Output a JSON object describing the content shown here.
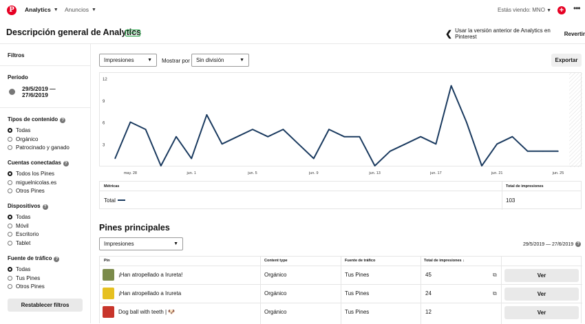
{
  "nav": {
    "logo": "P",
    "analytics": "Analytics",
    "ads": "Anuncios",
    "viewing": "Estás viendo: MNO"
  },
  "header": {
    "title": "Descripción general de Analytics",
    "badge": "Nuevo",
    "old_version_text": "Usar la versión anterior de Analytics en Pinterest",
    "revert": "Revertir"
  },
  "sidebar": {
    "filters": "Filtros",
    "period_label": "Período",
    "period_value": "29/5/2019 — 27/6/2019",
    "content_types": {
      "title": "Tipos de contenido",
      "options": [
        "Todas",
        "Orgánico",
        "Patrocinado y ganado"
      ],
      "selected": 0
    },
    "connected": {
      "title": "Cuentas conectadas",
      "options": [
        "Todos los Pines",
        "miguelnicolas.es",
        "Otros Pines"
      ],
      "selected": 0
    },
    "devices": {
      "title": "Dispositivos",
      "options": [
        "Todas",
        "Móvil",
        "Escritorio",
        "Tablet"
      ],
      "selected": 0
    },
    "traffic": {
      "title": "Fuente de tráfico",
      "options": [
        "Todas",
        "Tus Pines",
        "Otros Pines"
      ],
      "selected": 0
    },
    "reset": "Restablecer filtros"
  },
  "controls": {
    "metric": "Impresiones",
    "show_by_label": "Mostrar por",
    "division": "Sin división",
    "export": "Exportar"
  },
  "chart_data": {
    "type": "line",
    "x": [
      "may. 27",
      "may. 28",
      "may. 29",
      "may. 30",
      "may. 31",
      "jun. 1",
      "jun. 2",
      "jun. 3",
      "jun. 4",
      "jun. 5",
      "jun. 6",
      "jun. 7",
      "jun. 8",
      "jun. 9",
      "jun. 10",
      "jun. 11",
      "jun. 12",
      "jun. 13",
      "jun. 14",
      "jun. 15",
      "jun. 16",
      "jun. 17",
      "jun. 18",
      "jun. 19",
      "jun. 20",
      "jun. 21",
      "jun. 22",
      "jun. 23",
      "jun. 24",
      "jun. 25"
    ],
    "series": [
      {
        "name": "Total",
        "values": [
          1,
          6,
          5,
          0,
          4,
          1,
          7,
          3,
          4,
          5,
          4,
          5,
          3,
          1,
          5,
          4,
          4,
          0,
          2,
          3,
          4,
          3,
          11,
          6,
          0,
          3,
          4,
          2,
          2,
          2
        ]
      }
    ],
    "yticks": [
      3,
      6,
      9,
      12
    ],
    "xticks": [
      "may. 28",
      "jun. 1",
      "jun. 5",
      "jun. 9",
      "jun. 13",
      "jun. 17",
      "jun. 21",
      "jun. 25"
    ],
    "ylim": [
      0,
      12
    ],
    "color": "#1a3a5f"
  },
  "metrics": {
    "col1": "Métricas",
    "col2": "Total de impresiones",
    "row_label": "Total",
    "row_value": "103"
  },
  "top_pins": {
    "title": "Pines principales",
    "metric": "Impresiones",
    "date_range": "29/5/2019 — 27/6/2019",
    "columns": [
      "Pin",
      "Content type",
      "Fuente de tráfico",
      "Total de impresiones"
    ],
    "rows": [
      {
        "pin": "¡Han atropellado a Irureta!",
        "type": "Orgánico",
        "source": "Tus Pines",
        "total": "45",
        "action": "Ver"
      },
      {
        "pin": "¡Han atropellado a Irureta",
        "type": "Orgánico",
        "source": "Tus Pines",
        "total": "24",
        "action": "Ver"
      },
      {
        "pin": "Dog ball with teeth | 🐶",
        "type": "Orgánico",
        "source": "Tus Pines",
        "total": "12",
        "action": "Ver"
      }
    ]
  }
}
